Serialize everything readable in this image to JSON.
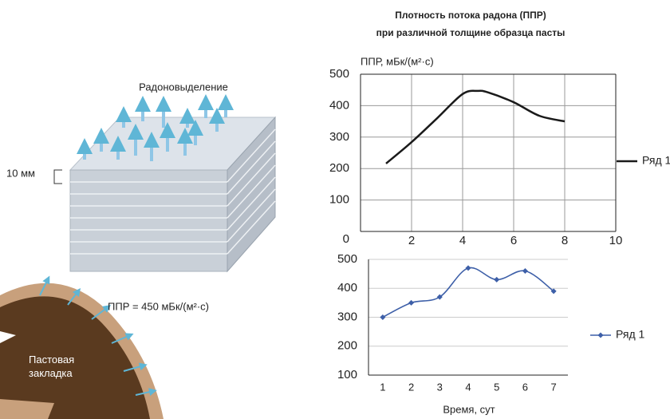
{
  "diagram": {
    "emission_label": "Радоновыделение",
    "thickness_label": "10 мм",
    "flux_label": "ППР = 450 мБк/(м²·с)",
    "backfill_label": "Пастовая закладка"
  },
  "chart_data": [
    {
      "type": "line",
      "title": "Плотность потока радона (ППР)",
      "subtitle": "при различной толщине образца пасты",
      "y_label": "ППР, мБк/(м²·с)",
      "x": [
        1,
        2,
        3,
        4,
        4.6,
        5,
        6,
        7,
        8
      ],
      "series": [
        {
          "name": "Ряд 1",
          "color": "#1a1a1a",
          "values": [
            216,
            284,
            360,
            437,
            447,
            442,
            411,
            368,
            350
          ]
        }
      ],
      "xlim": [
        0,
        10
      ],
      "xticks": [
        2,
        4,
        6,
        8,
        10
      ],
      "ylim": [
        0,
        500
      ],
      "yticks": [
        0,
        100,
        200,
        300,
        400,
        500
      ],
      "grid": true,
      "smooth": true,
      "legend": "right"
    },
    {
      "type": "line",
      "x_label": "Время, сут",
      "categories": [
        "1",
        "2",
        "3",
        "4",
        "5",
        "6",
        "7"
      ],
      "series": [
        {
          "name": "Ряд 1",
          "color": "#3d5fa8",
          "values": [
            300,
            350,
            370,
            470,
            430,
            460,
            390
          ]
        }
      ],
      "ylim": [
        100,
        500
      ],
      "yticks": [
        100,
        200,
        300,
        400,
        500
      ],
      "grid": true,
      "smooth": true,
      "markers": true,
      "legend": "right"
    }
  ]
}
